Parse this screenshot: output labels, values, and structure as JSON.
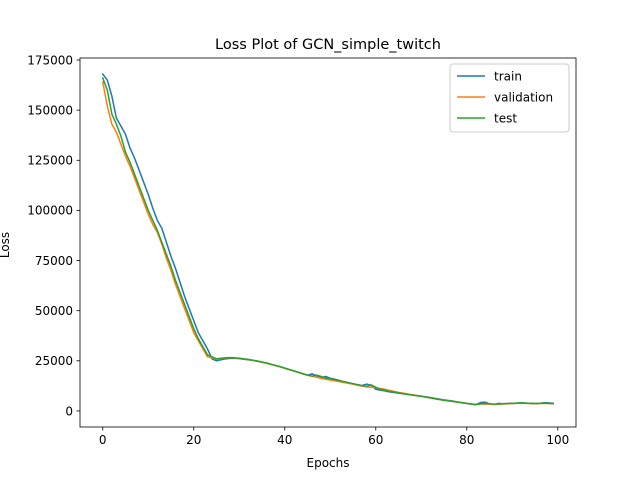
{
  "chart_data": {
    "type": "line",
    "title": "Loss Plot of GCN_simple_twitch",
    "xlabel": "Epochs",
    "ylabel": "Loss",
    "xlim": [
      -5,
      104
    ],
    "ylim": [
      -8000,
      176000
    ],
    "xticks": [
      0,
      20,
      40,
      60,
      80,
      100
    ],
    "yticks": [
      0,
      25000,
      50000,
      75000,
      100000,
      125000,
      150000,
      175000
    ],
    "grid": false,
    "legend": "top-right",
    "series": [
      {
        "name": "train",
        "color": "#1f77b4",
        "x": [
          0,
          1,
          2,
          3,
          4,
          5,
          6,
          7,
          8,
          9,
          10,
          11,
          12,
          13,
          14,
          15,
          16,
          17,
          18,
          19,
          20,
          21,
          22,
          23,
          24,
          25,
          26,
          27,
          28,
          29,
          30,
          31,
          32,
          33,
          34,
          35,
          36,
          37,
          38,
          39,
          40,
          41,
          42,
          43,
          44,
          45,
          46,
          47,
          48,
          49,
          50,
          51,
          52,
          53,
          54,
          55,
          56,
          57,
          58,
          59,
          60,
          61,
          62,
          63,
          64,
          65,
          66,
          67,
          68,
          69,
          70,
          71,
          72,
          73,
          74,
          75,
          76,
          77,
          78,
          79,
          80,
          81,
          82,
          83,
          84,
          85,
          86,
          87,
          88,
          89,
          90,
          91,
          92,
          93,
          94,
          95,
          96,
          97,
          98,
          99
        ],
        "values": [
          168000,
          165000,
          157000,
          146000,
          142000,
          138000,
          131000,
          126000,
          120000,
          114000,
          108000,
          101000,
          95000,
          91000,
          84000,
          77000,
          71000,
          64000,
          57000,
          51000,
          45000,
          39000,
          35000,
          31000,
          26000,
          25000,
          25500,
          26000,
          26200,
          26300,
          26100,
          25800,
          25500,
          25200,
          24800,
          24300,
          23800,
          23200,
          22600,
          22000,
          21300,
          20600,
          19900,
          19200,
          18500,
          17800,
          18500,
          17600,
          16600,
          17200,
          16300,
          15800,
          15200,
          14600,
          14100,
          13600,
          13100,
          12700,
          13400,
          12800,
          10800,
          10400,
          10000,
          9500,
          9200,
          8900,
          8600,
          8300,
          8000,
          7700,
          7400,
          7000,
          6700,
          6300,
          5900,
          5500,
          5200,
          4900,
          4500,
          4100,
          3700,
          3400,
          3100,
          4200,
          4400,
          3500,
          3200,
          3800,
          3600,
          3700,
          3800,
          3900,
          4000,
          3900,
          3800,
          3700,
          3800,
          4100,
          4000,
          3800
        ]
      },
      {
        "name": "validation",
        "color": "#ff7f0e",
        "x": [
          0,
          1,
          2,
          3,
          4,
          5,
          6,
          7,
          8,
          9,
          10,
          11,
          12,
          13,
          14,
          15,
          16,
          17,
          18,
          19,
          20,
          21,
          22,
          23,
          24,
          25,
          26,
          27,
          28,
          29,
          30,
          31,
          32,
          33,
          34,
          35,
          36,
          37,
          38,
          39,
          40,
          41,
          42,
          43,
          44,
          45,
          46,
          47,
          48,
          49,
          50,
          51,
          52,
          53,
          54,
          55,
          56,
          57,
          58,
          59,
          60,
          61,
          62,
          63,
          64,
          65,
          66,
          67,
          68,
          69,
          70,
          71,
          72,
          73,
          74,
          75,
          76,
          77,
          78,
          79,
          80,
          81,
          82,
          83,
          84,
          85,
          86,
          87,
          88,
          89,
          90,
          91,
          92,
          93,
          94,
          95,
          96,
          97,
          98,
          99
        ],
        "values": [
          164000,
          152000,
          143000,
          139000,
          133000,
          127000,
          122000,
          116000,
          110000,
          104000,
          98000,
          93000,
          89000,
          83000,
          76000,
          70000,
          63000,
          57000,
          51000,
          45000,
          39000,
          35000,
          31000,
          27000,
          26500,
          25800,
          26200,
          26400,
          26500,
          26400,
          26200,
          25900,
          25600,
          25200,
          24800,
          24300,
          23800,
          23200,
          22600,
          22000,
          21300,
          20600,
          19900,
          19200,
          18500,
          17800,
          17300,
          16800,
          16300,
          15800,
          15400,
          15000,
          14600,
          14200,
          13800,
          13300,
          12800,
          12400,
          12000,
          11800,
          11600,
          11200,
          10800,
          10300,
          9800,
          9300,
          8900,
          8500,
          8100,
          7700,
          7300,
          6900,
          6500,
          6100,
          5700,
          5300,
          5000,
          4700,
          4400,
          4100,
          3800,
          3500,
          3300,
          3400,
          3500,
          3400,
          3300,
          3400,
          3500,
          3600,
          3700,
          3800,
          3900,
          3800,
          3700,
          3600,
          3700,
          3800,
          3700,
          3600
        ]
      },
      {
        "name": "test",
        "color": "#2ca02c",
        "x": [
          0,
          1,
          2,
          3,
          4,
          5,
          6,
          7,
          8,
          9,
          10,
          11,
          12,
          13,
          14,
          15,
          16,
          17,
          18,
          19,
          20,
          21,
          22,
          23,
          24,
          25,
          26,
          27,
          28,
          29,
          30,
          31,
          32,
          33,
          34,
          35,
          36,
          37,
          38,
          39,
          40,
          41,
          42,
          43,
          44,
          45,
          46,
          47,
          48,
          49,
          50,
          51,
          52,
          53,
          54,
          55,
          56,
          57,
          58,
          59,
          60,
          61,
          62,
          63,
          64,
          65,
          66,
          67,
          68,
          69,
          70,
          71,
          72,
          73,
          74,
          75,
          76,
          77,
          78,
          79,
          80,
          81,
          82,
          83,
          84,
          85,
          86,
          87,
          88,
          89,
          90,
          91,
          92,
          93,
          94,
          95,
          96,
          97,
          98,
          99
        ],
        "values": [
          166000,
          160000,
          148000,
          143000,
          137000,
          129000,
          124000,
          118000,
          112000,
          106000,
          100000,
          95000,
          90000,
          84000,
          78000,
          72000,
          65000,
          59000,
          53000,
          47000,
          41000,
          36000,
          32000,
          28000,
          27000,
          26000,
          26300,
          26500,
          26600,
          26500,
          26300,
          26000,
          25700,
          25300,
          24900,
          24400,
          23900,
          23300,
          22700,
          22100,
          21400,
          20700,
          20000,
          19300,
          18600,
          17900,
          17400,
          17900,
          17200,
          16400,
          16000,
          15600,
          15100,
          14600,
          14100,
          13600,
          13100,
          12600,
          12300,
          13000,
          11800,
          10800,
          10300,
          9800,
          9400,
          9000,
          8600,
          8200,
          7900,
          7600,
          7300,
          6900,
          6500,
          6100,
          5700,
          5300,
          5000,
          4700,
          4400,
          4100,
          3800,
          3500,
          3200,
          3600,
          3800,
          3600,
          3400,
          3500,
          3600,
          3700,
          3800,
          3900,
          4000,
          3900,
          3800,
          3700,
          3800,
          3900,
          3800,
          3700
        ]
      }
    ]
  }
}
